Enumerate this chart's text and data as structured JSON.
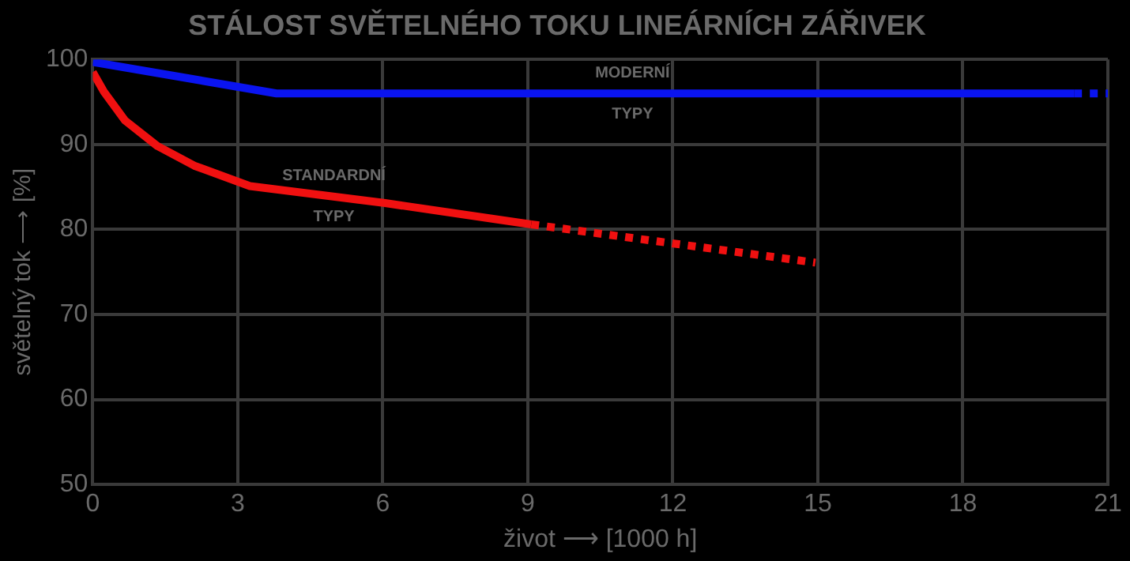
{
  "chart_data": {
    "type": "line",
    "title": "STÁLOST SVĚTELNÉHO TOKU LINEÁRNÍCH ZÁŘIVEK",
    "xlabel": "život ⟶ [1000 h]",
    "ylabel": "světelný tok ⟶ [%]",
    "xlim": [
      0,
      21
    ],
    "xticks": [
      0,
      3,
      6,
      9,
      12,
      15,
      18,
      21
    ],
    "ylim": [
      50,
      100
    ],
    "yticks": [
      50,
      60,
      70,
      80,
      90,
      100
    ],
    "grid": true,
    "legend": false,
    "marker": "none",
    "series": [
      {
        "name": "MODERNÍ TYPY",
        "color": "#0a14f0",
        "line_style": "solid",
        "x": [
          0,
          3.8,
          20.3
        ],
        "values": [
          99.7,
          96,
          96
        ]
      },
      {
        "color": "#0a14f0",
        "line_style": "dotted",
        "x": [
          20.3,
          21
        ],
        "values": [
          96,
          96
        ]
      },
      {
        "name": "STANDARDNÍ TYPY",
        "color": "#f01010",
        "line_style": "solid",
        "x": [
          0,
          0.23,
          0.67,
          1.34,
          2.1,
          3.25,
          6.05,
          9.07
        ],
        "values": [
          98.5,
          96.2,
          92.8,
          89.8,
          87.5,
          85.1,
          83.1,
          80.6
        ]
      },
      {
        "color": "#f01010",
        "line_style": "dotted",
        "x": [
          9.07,
          14.95
        ],
        "values": [
          80.6,
          76.1
        ]
      }
    ]
  }
}
